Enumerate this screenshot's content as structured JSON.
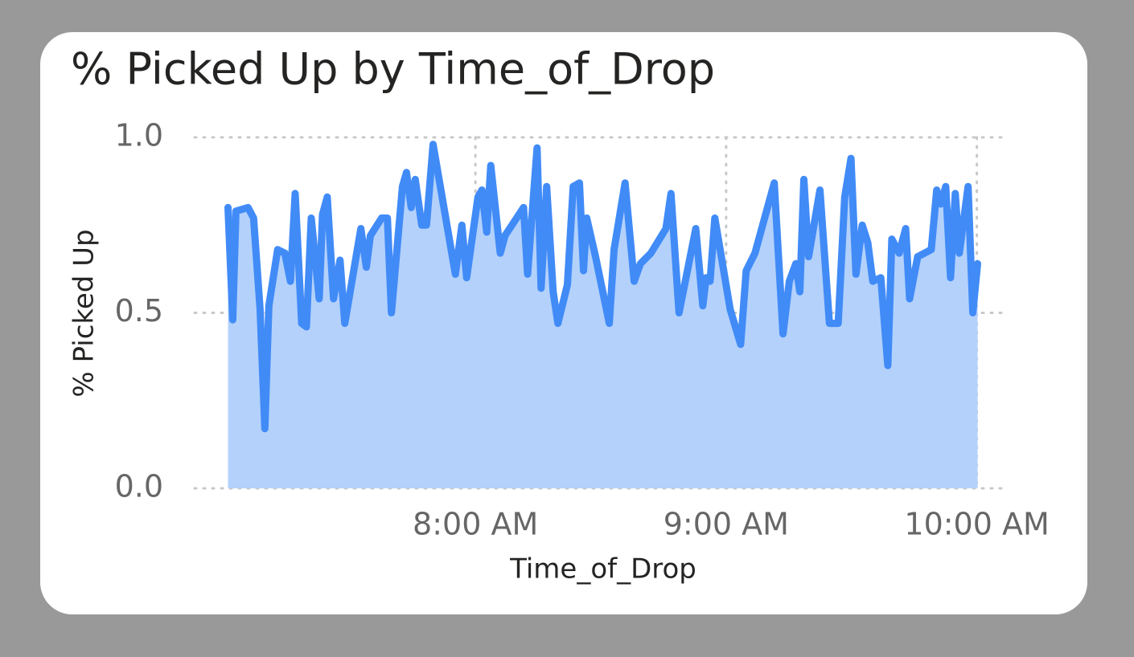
{
  "chart_data": {
    "type": "area",
    "title": "% Picked Up by Time_of_Drop",
    "x_label": "Time_of_Drop",
    "y_label": "% Picked Up",
    "color": "#418bf7",
    "fill_color": "#b3d1fb",
    "grid": true,
    "xlim": [
      6.88,
      10.12
    ],
    "ylim": [
      0,
      1
    ],
    "xticks": [
      {
        "value": 8,
        "label": "8:00 AM"
      },
      {
        "value": 9,
        "label": "9:00 AM"
      },
      {
        "value": 10,
        "label": "10:00 AM"
      }
    ],
    "yticks": [
      {
        "value": 0,
        "label": "0.0"
      },
      {
        "value": 0.5,
        "label": "0.5"
      },
      {
        "value": 1,
        "label": "1.0"
      }
    ],
    "x": [
      7.013,
      7.032,
      7.045,
      7.093,
      7.115,
      7.141,
      7.16,
      7.176,
      7.211,
      7.24,
      7.262,
      7.281,
      7.307,
      7.326,
      7.345,
      7.377,
      7.39,
      7.409,
      7.434,
      7.46,
      7.479,
      7.543,
      7.565,
      7.581,
      7.626,
      7.649,
      7.665,
      7.709,
      7.725,
      7.744,
      7.76,
      7.786,
      7.805,
      7.831,
      7.92,
      7.946,
      7.965,
      8.01,
      8.026,
      8.045,
      8.061,
      8.099,
      8.118,
      8.192,
      8.208,
      8.246,
      8.262,
      8.284,
      8.31,
      8.329,
      8.367,
      8.39,
      8.415,
      8.431,
      8.444,
      8.479,
      8.534,
      8.553,
      8.597,
      8.633,
      8.658,
      8.7,
      8.76,
      8.78,
      8.812,
      8.879,
      8.907,
      8.92,
      8.936,
      8.955,
      9.016,
      9.058,
      9.08,
      9.115,
      9.192,
      9.227,
      9.252,
      9.278,
      9.294,
      9.31,
      9.329,
      9.374,
      9.412,
      9.447,
      9.473,
      9.498,
      9.518,
      9.543,
      9.565,
      9.585,
      9.617,
      9.645,
      9.661,
      9.69,
      9.716,
      9.732,
      9.764,
      9.818,
      9.84,
      9.856,
      9.876,
      9.895,
      9.914,
      9.93,
      9.965,
      9.984,
      10.003
    ],
    "values": [
      0.8,
      0.48,
      0.79,
      0.8,
      0.77,
      0.51,
      0.17,
      0.52,
      0.68,
      0.67,
      0.59,
      0.84,
      0.47,
      0.46,
      0.77,
      0.54,
      0.78,
      0.83,
      0.54,
      0.65,
      0.47,
      0.74,
      0.63,
      0.72,
      0.77,
      0.77,
      0.5,
      0.86,
      0.9,
      0.8,
      0.88,
      0.75,
      0.75,
      0.98,
      0.61,
      0.75,
      0.6,
      0.83,
      0.85,
      0.73,
      0.92,
      0.67,
      0.72,
      0.8,
      0.61,
      0.97,
      0.57,
      0.86,
      0.56,
      0.47,
      0.58,
      0.86,
      0.87,
      0.62,
      0.77,
      0.66,
      0.47,
      0.68,
      0.87,
      0.59,
      0.64,
      0.67,
      0.74,
      0.84,
      0.5,
      0.74,
      0.52,
      0.6,
      0.59,
      0.77,
      0.51,
      0.41,
      0.62,
      0.67,
      0.87,
      0.44,
      0.59,
      0.64,
      0.56,
      0.88,
      0.66,
      0.85,
      0.47,
      0.47,
      0.83,
      0.94,
      0.61,
      0.75,
      0.7,
      0.59,
      0.6,
      0.35,
      0.71,
      0.67,
      0.74,
      0.54,
      0.66,
      0.68,
      0.85,
      0.81,
      0.86,
      0.6,
      0.84,
      0.67,
      0.86,
      0.5,
      0.64
    ]
  }
}
